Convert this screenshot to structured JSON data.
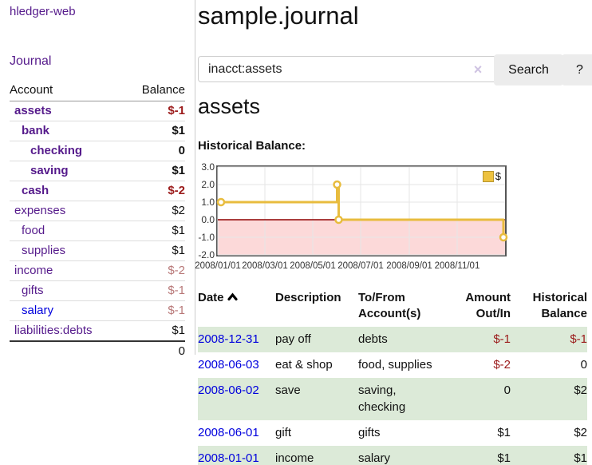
{
  "sidebar": {
    "app_title": "hledger-web",
    "journal_label": "Journal",
    "accounts_table": {
      "account_header": "Account",
      "balance_header": "Balance",
      "rows": [
        {
          "name": "assets",
          "indent": 1,
          "bold": true,
          "balance": "$-1",
          "balance_tone": "neg-strong",
          "link_tone": "purple"
        },
        {
          "name": "bank",
          "indent": 2,
          "bold": true,
          "balance": "$1",
          "balance_tone": "none",
          "link_tone": "purple"
        },
        {
          "name": "checking",
          "indent": 3,
          "bold": true,
          "balance": "0",
          "balance_tone": "none",
          "link_tone": "purple"
        },
        {
          "name": "saving",
          "indent": 3,
          "bold": true,
          "balance": "$1",
          "balance_tone": "none",
          "link_tone": "purple"
        },
        {
          "name": "cash",
          "indent": 2,
          "bold": true,
          "balance": "$-2",
          "balance_tone": "neg-strong",
          "link_tone": "purple"
        },
        {
          "name": "expenses",
          "indent": 1,
          "bold": false,
          "balance": "$2",
          "balance_tone": "none",
          "link_tone": "purple"
        },
        {
          "name": "food",
          "indent": 2,
          "bold": false,
          "balance": "$1",
          "balance_tone": "none",
          "link_tone": "purple"
        },
        {
          "name": "supplies",
          "indent": 2,
          "bold": false,
          "balance": "$1",
          "balance_tone": "none",
          "link_tone": "purple"
        },
        {
          "name": "income",
          "indent": 1,
          "bold": false,
          "balance": "$-2",
          "balance_tone": "neg-soft",
          "link_tone": "purple"
        },
        {
          "name": "gifts",
          "indent": 2,
          "bold": false,
          "balance": "$-1",
          "balance_tone": "neg-soft",
          "link_tone": "purple"
        },
        {
          "name": "salary",
          "indent": 2,
          "bold": false,
          "balance": "$-1",
          "balance_tone": "neg-soft",
          "link_tone": "blue"
        },
        {
          "name": "liabilities:debts",
          "indent": 1,
          "bold": false,
          "balance": "$1",
          "balance_tone": "none",
          "link_tone": "purple"
        }
      ],
      "total": "0"
    }
  },
  "main": {
    "title": "sample.journal",
    "search": {
      "query": "inacct:assets",
      "clear_glyph": "×",
      "search_button": "Search",
      "help_button": "?"
    },
    "account_heading": "assets",
    "chart_heading": "Historical Balance:"
  },
  "chart_data": {
    "type": "line",
    "title": "Historical Balance",
    "style": "step",
    "legend": [
      {
        "label": "$",
        "color": "#edc240"
      }
    ],
    "legend_position": "top-right",
    "grid": true,
    "ylim": [
      -2,
      3
    ],
    "y_ticks": [
      "3.0",
      "2.0",
      "1.0",
      "0.0",
      "-1.0",
      "-2.0"
    ],
    "y_tick_values": [
      3,
      2,
      1,
      0,
      -1,
      -2
    ],
    "x_ticks": [
      "2008/01/01",
      "2008/03/01",
      "2008/05/01",
      "2008/07/01",
      "2008/09/01",
      "2008/11/01"
    ],
    "x_range": [
      "2008-01-01",
      "2008-12-31"
    ],
    "series": [
      {
        "name": "$",
        "points": [
          {
            "x": "2008-01-01",
            "y": 1
          },
          {
            "x": "2008-06-01",
            "y": 2
          },
          {
            "x": "2008-06-03",
            "y": 0
          },
          {
            "x": "2008-12-31",
            "y": -1
          }
        ]
      }
    ],
    "line_color": "#e8bc3e",
    "marker_fill": "#ffffff",
    "negative_region_color": "#fcd9d9",
    "zero_line_color": "#8f0000",
    "grid_color": "#e6e6e6",
    "border_color": "#555555"
  },
  "register": {
    "headers": [
      {
        "line1": "Date",
        "line2": "",
        "align": "left",
        "sorted": true
      },
      {
        "line1": "Description",
        "line2": "",
        "align": "left",
        "sorted": false
      },
      {
        "line1": "To/From",
        "line2": "Account(s)",
        "align": "left",
        "sorted": false
      },
      {
        "line1": "Amount",
        "line2": "Out/In",
        "align": "right",
        "sorted": false
      },
      {
        "line1": "Historical",
        "line2": "Balance",
        "align": "right",
        "sorted": false
      }
    ],
    "rows": [
      {
        "date": "2008-12-31",
        "description": "pay off",
        "accounts": "debts",
        "amount": "$-1",
        "amount_neg": true,
        "balance": "$-1",
        "balance_neg": true,
        "stripe": true
      },
      {
        "date": "2008-06-03",
        "description": "eat & shop",
        "accounts": "food, supplies",
        "amount": "$-2",
        "amount_neg": true,
        "balance": "0",
        "balance_neg": false,
        "stripe": false
      },
      {
        "date": "2008-06-02",
        "description": "save",
        "accounts": "saving, checking",
        "amount": "0",
        "amount_neg": false,
        "balance": "$2",
        "balance_neg": false,
        "stripe": true
      },
      {
        "date": "2008-06-01",
        "description": "gift",
        "accounts": "gifts",
        "amount": "$1",
        "amount_neg": false,
        "balance": "$2",
        "balance_neg": false,
        "stripe": false
      },
      {
        "date": "2008-01-01",
        "description": "income",
        "accounts": "salary",
        "amount": "$1",
        "amount_neg": false,
        "balance": "$1",
        "balance_neg": false,
        "stripe": true
      }
    ]
  }
}
